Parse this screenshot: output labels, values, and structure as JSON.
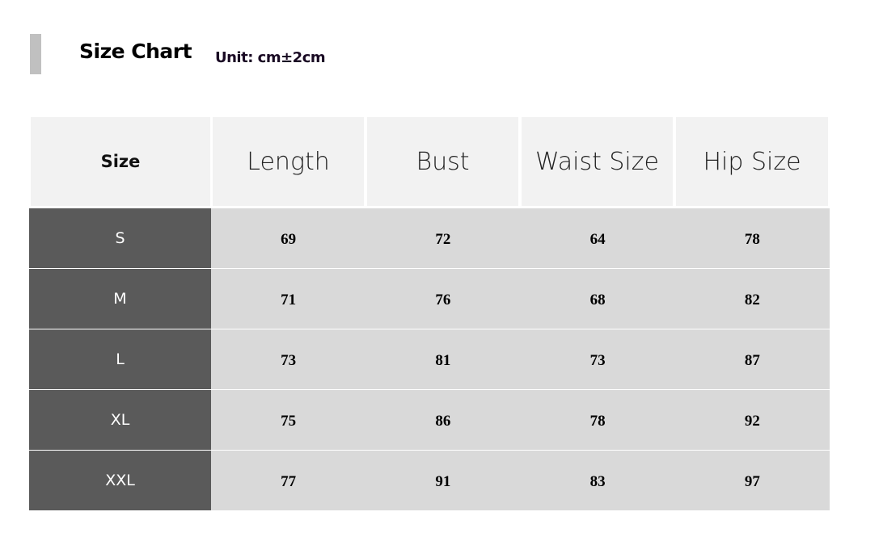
{
  "header": {
    "title": "Size Chart",
    "unit": "Unit: cm±2cm"
  },
  "table": {
    "columns": [
      "Size",
      "Length",
      "Bust",
      "Waist Size",
      "Hip Size"
    ],
    "rows": [
      {
        "size": "S",
        "values": [
          "69",
          "72",
          "64",
          "78"
        ]
      },
      {
        "size": "M",
        "values": [
          "71",
          "76",
          "68",
          "82"
        ]
      },
      {
        "size": "L",
        "values": [
          "73",
          "81",
          "73",
          "87"
        ]
      },
      {
        "size": "XL",
        "values": [
          "75",
          "86",
          "78",
          "92"
        ]
      },
      {
        "size": "XXL",
        "values": [
          "77",
          "91",
          "83",
          "97"
        ]
      }
    ]
  },
  "colors": {
    "size_column": "#5a5a5a",
    "value_cells": "#d9d9d9",
    "header_cells": "#f2f2f2",
    "accent_bar": "#c0c0c0"
  }
}
